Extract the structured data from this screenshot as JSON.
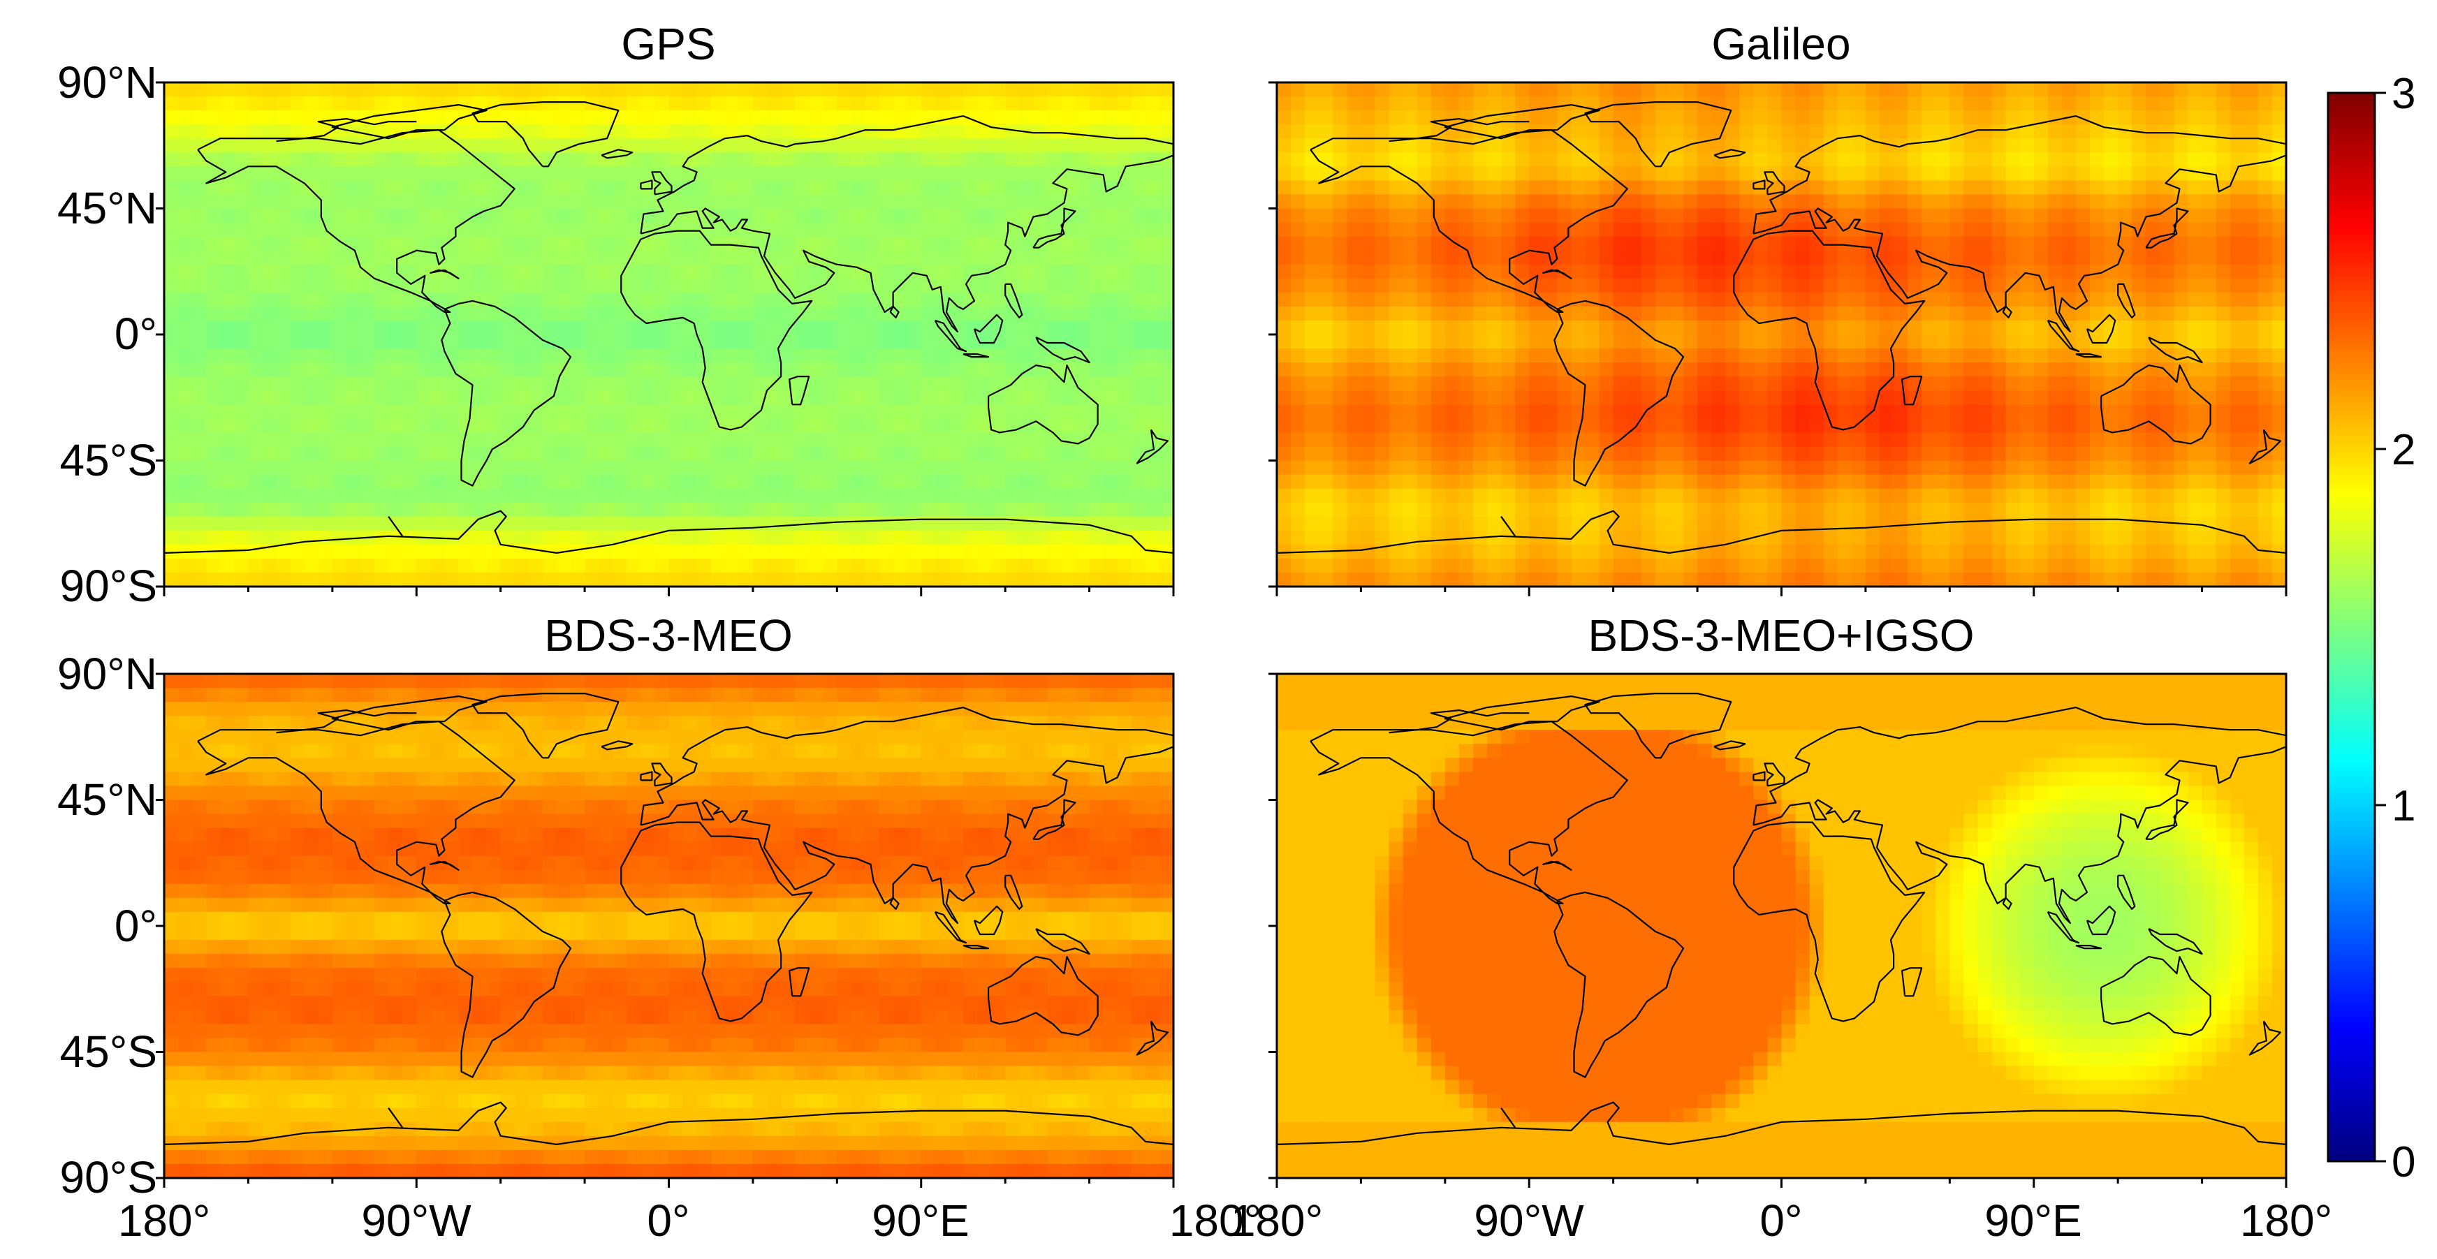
{
  "chart_data": {
    "type": "heatmap",
    "figure_kind": "global map panels (equirectangular) with shared colorbar",
    "colorbar": {
      "min": 0,
      "max": 3,
      "ticks": [
        0,
        1,
        2,
        3
      ],
      "tick_labels": [
        "0",
        "1",
        "2",
        "3"
      ],
      "colormap": "jet",
      "colormap_stops": [
        "#00007f",
        "#0000ff",
        "#007fff",
        "#00ffff",
        "#7fff7f",
        "#ffff00",
        "#ff7f00",
        "#ff0000",
        "#7f0000"
      ]
    },
    "lat_ticks": [
      "90°N",
      "45°N",
      "0°",
      "45°S",
      "90°S"
    ],
    "lon_ticks": [
      "180°",
      "90°W",
      "0°",
      "90°E",
      "180°"
    ],
    "xlim": [
      -180,
      180
    ],
    "ylim": [
      -90,
      90
    ],
    "panels": [
      {
        "title": "GPS",
        "pattern": "zonal",
        "latitudes": [
          90,
          75,
          60,
          45,
          30,
          15,
          0,
          -15,
          -30,
          -45,
          -60,
          -75,
          -90
        ],
        "values": [
          2.0,
          1.85,
          1.6,
          1.58,
          1.6,
          1.58,
          1.5,
          1.58,
          1.6,
          1.58,
          1.55,
          1.85,
          2.0
        ]
      },
      {
        "title": "Galileo",
        "pattern": "zonal_modulated",
        "latitudes": [
          90,
          75,
          60,
          45,
          30,
          15,
          0,
          -15,
          -30,
          -45,
          -60,
          -75,
          -90
        ],
        "values": [
          2.15,
          2.05,
          1.95,
          2.2,
          2.3,
          2.2,
          2.0,
          2.2,
          2.3,
          2.2,
          2.0,
          2.05,
          2.2
        ],
        "longitudinal_hotspots": [
          {
            "lon": -45,
            "lat": 25,
            "delta": 0.15
          },
          {
            "lon": 30,
            "lat": -30,
            "delta": 0.15
          }
        ]
      },
      {
        "title": "BDS-3-MEO",
        "pattern": "zonal",
        "latitudes": [
          90,
          75,
          60,
          45,
          30,
          15,
          0,
          -15,
          -30,
          -45,
          -60,
          -75,
          -90
        ],
        "values": [
          2.35,
          2.1,
          2.05,
          2.25,
          2.35,
          2.3,
          2.0,
          2.3,
          2.35,
          2.25,
          2.0,
          2.1,
          2.4
        ]
      },
      {
        "title": "BDS-3-MEO+IGSO",
        "pattern": "regional",
        "background_value": 2.05,
        "high_region": {
          "center_lon": -65,
          "center_lat": 0,
          "radius_deg": 72,
          "value": 2.3
        },
        "low_region": {
          "center_lon": 115,
          "center_lat": 0,
          "radius_deg": 65,
          "value": 1.6
        },
        "polar_value": 2.05
      }
    ]
  }
}
